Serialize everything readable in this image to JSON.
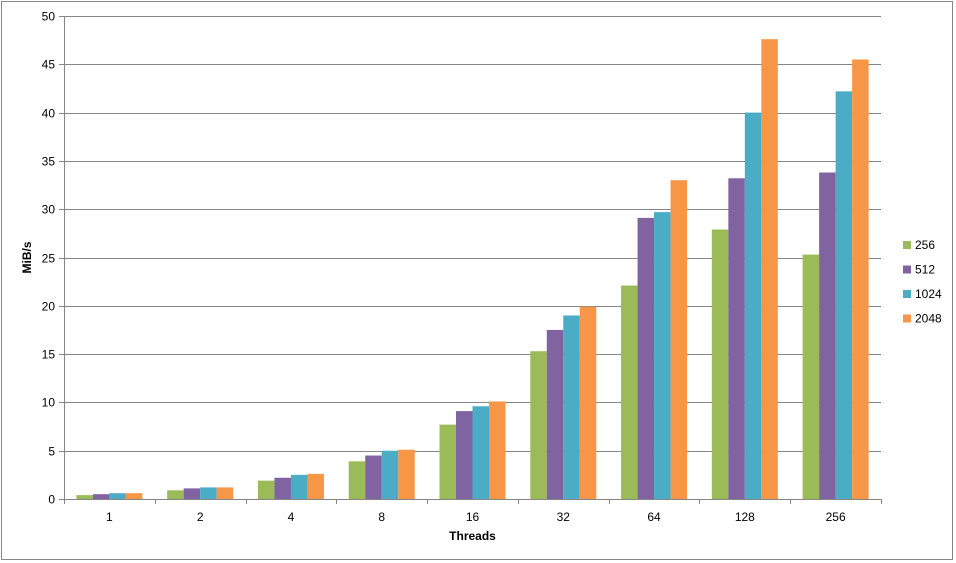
{
  "chart_data": {
    "type": "bar",
    "title": "",
    "xlabel": "Threads",
    "ylabel": "MiB/s",
    "ylim": [
      0,
      50
    ],
    "yticks": [
      0,
      5,
      10,
      15,
      20,
      25,
      30,
      35,
      40,
      45,
      50
    ],
    "categories": [
      "1",
      "2",
      "4",
      "8",
      "16",
      "32",
      "64",
      "128",
      "256"
    ],
    "series": [
      {
        "name": "256",
        "color": "#9bbb59",
        "values": [
          0.4,
          0.9,
          1.9,
          3.9,
          7.7,
          15.3,
          22.1,
          27.9,
          25.3
        ]
      },
      {
        "name": "512",
        "color": "#8064a2",
        "values": [
          0.5,
          1.1,
          2.2,
          4.5,
          9.1,
          17.5,
          29.1,
          33.2,
          33.8
        ]
      },
      {
        "name": "1024",
        "color": "#4bacc6",
        "values": [
          0.6,
          1.2,
          2.5,
          5.0,
          9.6,
          19.0,
          29.7,
          40.0,
          42.2
        ]
      },
      {
        "name": "2048",
        "color": "#f79646",
        "values": [
          0.6,
          1.2,
          2.6,
          5.1,
          10.1,
          19.9,
          33.0,
          47.6,
          45.5
        ]
      }
    ],
    "grid": true,
    "legend_position": "right"
  }
}
